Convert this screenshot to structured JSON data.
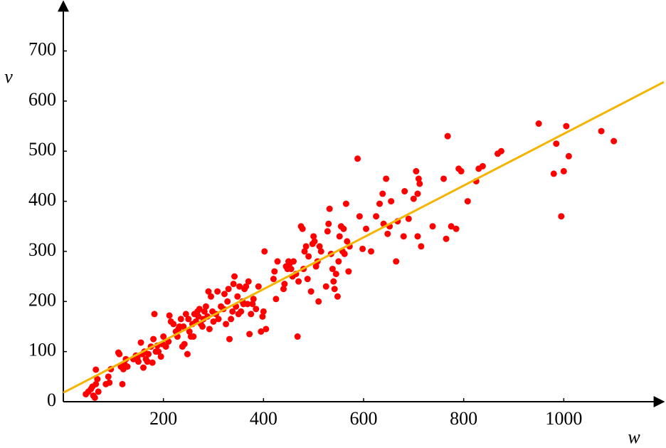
{
  "chart_data": {
    "type": "scatter",
    "xlabel": "w",
    "ylabel": "v",
    "xlim": [
      0,
      1200
    ],
    "ylim": [
      0,
      800
    ],
    "xticks": [
      200,
      400,
      600,
      800,
      1000
    ],
    "yticks": [
      0,
      100,
      200,
      300,
      400,
      500,
      600,
      700
    ],
    "series": [
      {
        "color": "#ff0000",
        "style": "points",
        "x": [
          45,
          50,
          55,
          58,
          60,
          63,
          65,
          68,
          70,
          65,
          90,
          92,
          95,
          85,
          110,
          112,
          115,
          118,
          120,
          122,
          125,
          128,
          140,
          145,
          148,
          150,
          155,
          158,
          160,
          162,
          165,
          168,
          170,
          175,
          178,
          180,
          182,
          185,
          188,
          190,
          195,
          198,
          200,
          205,
          210,
          212,
          215,
          220,
          225,
          228,
          230,
          232,
          235,
          238,
          240,
          242,
          245,
          248,
          250,
          252,
          255,
          258,
          260,
          262,
          265,
          268,
          270,
          272,
          275,
          278,
          280,
          282,
          285,
          288,
          290,
          292,
          295,
          298,
          300,
          305,
          308,
          310,
          315,
          320,
          322,
          325,
          328,
          330,
          332,
          335,
          338,
          340,
          342,
          345,
          348,
          350,
          352,
          355,
          358,
          360,
          362,
          365,
          368,
          370,
          372,
          375,
          378,
          380,
          385,
          390,
          395,
          398,
          400,
          402,
          405,
          420,
          422,
          425,
          428,
          440,
          442,
          445,
          448,
          450,
          452,
          455,
          458,
          460,
          465,
          468,
          470,
          475,
          478,
          480,
          482,
          485,
          488,
          490,
          495,
          498,
          500,
          502,
          505,
          508,
          510,
          512,
          515,
          525,
          528,
          530,
          532,
          535,
          538,
          540,
          542,
          545,
          548,
          550,
          552,
          555,
          558,
          560,
          562,
          565,
          567,
          570,
          572,
          588,
          592,
          598,
          605,
          615,
          625,
          632,
          638,
          640,
          645,
          648,
          652,
          655,
          665,
          668,
          680,
          682,
          690,
          700,
          705,
          708,
          712,
          710,
          715,
          708,
          738,
          760,
          765,
          768,
          775,
          785,
          790,
          795,
          808,
          825,
          830,
          838,
          868,
          875,
          950,
          980,
          985,
          995,
          1000,
          1005,
          1010,
          1075,
          1100
        ],
        "values": [
          15,
          20,
          25,
          30,
          12,
          8,
          35,
          45,
          20,
          64,
          50,
          38,
          65,
          35,
          98,
          95,
          70,
          35,
          65,
          75,
          85,
          70,
          85,
          92,
          88,
          80,
          118,
          95,
          68,
          100,
          85,
          80,
          95,
          110,
          78,
          125,
          175,
          100,
          112,
          100,
          90,
          115,
          130,
          110,
          120,
          172,
          160,
          155,
          140,
          130,
          145,
          150,
          165,
          110,
          150,
          115,
          175,
          95,
          165,
          140,
          130,
          155,
          130,
          175,
          160,
          180,
          170,
          185,
          155,
          150,
          165,
          180,
          190,
          170,
          220,
          145,
          210,
          180,
          160,
          175,
          220,
          165,
          190,
          185,
          215,
          155,
          200,
          225,
          125,
          165,
          180,
          235,
          250,
          190,
          210,
          175,
          230,
          180,
          200,
          195,
          225,
          230,
          195,
          240,
          135,
          175,
          195,
          205,
          185,
          230,
          140,
          170,
          180,
          300,
          145,
          245,
          260,
          205,
          280,
          225,
          235,
          270,
          265,
          280,
          275,
          265,
          250,
          280,
          255,
          130,
          240,
          350,
          345,
          265,
          300,
          310,
          245,
          290,
          220,
          315,
          330,
          320,
          270,
          280,
          200,
          310,
          300,
          230,
          340,
          355,
          385,
          295,
          265,
          240,
          225,
          255,
          210,
          280,
          330,
          350,
          300,
          345,
          295,
          395,
          320,
          260,
          310,
          485,
          370,
          305,
          345,
          300,
          370,
          395,
          415,
          355,
          445,
          335,
          350,
          400,
          280,
          360,
          330,
          420,
          365,
          405,
          460,
          330,
          435,
          445,
          310,
          415,
          350,
          445,
          325,
          530,
          350,
          345,
          465,
          460,
          400,
          440,
          465,
          470,
          495,
          500,
          555,
          455,
          515,
          370,
          460,
          550,
          490,
          540,
          520
        ]
      },
      {
        "color": "#f5b400",
        "style": "line",
        "x": [
          0,
          1200
        ],
        "values": [
          18,
          638
        ]
      }
    ]
  }
}
